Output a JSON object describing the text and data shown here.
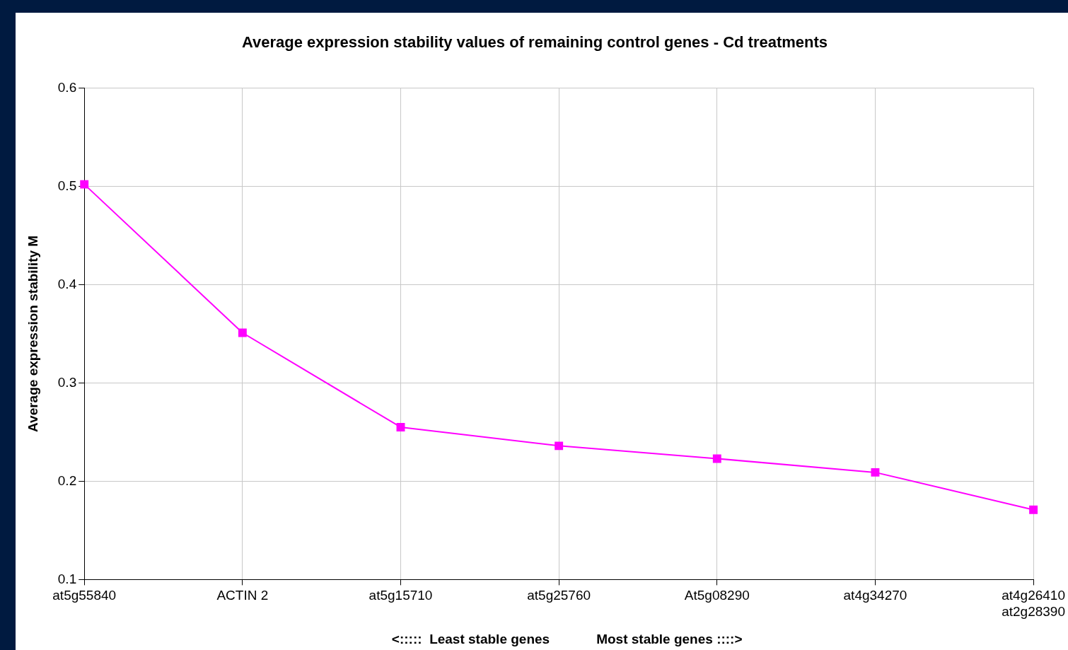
{
  "chart_data": {
    "type": "line",
    "title": "Average expression stability values of remaining control genes - Cd treatments",
    "ylabel": "Average expression stability M",
    "categories": [
      "at5g55840",
      "ACTIN 2",
      "at5g15710",
      "at5g25760",
      "At5g08290",
      "at4g34270",
      "at4g26410\nat2g28390"
    ],
    "series": [
      {
        "color": "#ff00ff",
        "values": [
          0.502,
          0.351,
          0.255,
          0.236,
          0.223,
          0.209,
          0.171
        ]
      }
    ],
    "ylim": [
      0.1,
      0.6
    ],
    "yticks": [
      0.1,
      0.2,
      0.3,
      0.4,
      0.5,
      0.6
    ],
    "grid": true,
    "legend": false,
    "marker": "square",
    "line_style": "solid",
    "annotations": [
      "<:::::  Least stable genes",
      "Most stable genes ::::>"
    ]
  }
}
